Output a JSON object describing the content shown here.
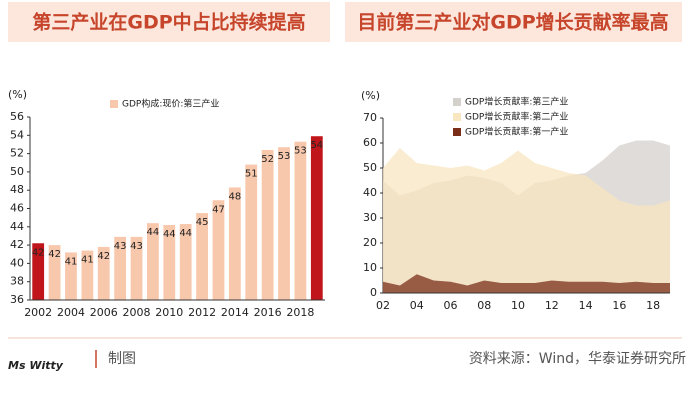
{
  "chart_data": [
    {
      "type": "bar",
      "title": "第三产业在GDP中占比持续提高",
      "y_unit": "(%)",
      "legend": "GDP构成:现价:第三产业",
      "legend_color": "#f8c8ad",
      "categories": [
        "2002",
        null,
        "2004",
        null,
        "2006",
        null,
        "2008",
        null,
        "2010",
        null,
        "2012",
        null,
        "2014",
        null,
        "2016",
        null,
        "2018",
        null
      ],
      "values": [
        42.2,
        42.0,
        41.2,
        41.4,
        41.8,
        42.9,
        42.9,
        44.4,
        44.2,
        44.3,
        45.5,
        46.9,
        48.3,
        50.8,
        52.4,
        52.7,
        53.3,
        53.9
      ],
      "value_labels": [
        "42",
        "42",
        "41",
        "41",
        "42",
        "43",
        "43",
        "44",
        "44",
        "44",
        "45",
        "47",
        "48",
        "51",
        "52",
        "53",
        "53",
        "54"
      ],
      "colors": [
        "#c0161b",
        "#f8c8ad",
        "#f8c8ad",
        "#f8c8ad",
        "#f8c8ad",
        "#f8c8ad",
        "#f8c8ad",
        "#f8c8ad",
        "#f8c8ad",
        "#f8c8ad",
        "#f8c8ad",
        "#f8c8ad",
        "#f8c8ad",
        "#f8c8ad",
        "#f8c8ad",
        "#f8c8ad",
        "#f8c8ad",
        "#c0161b"
      ],
      "ylim": [
        36,
        56
      ],
      "yticks": [
        36,
        38,
        40,
        42,
        44,
        46,
        48,
        50,
        52,
        54,
        56
      ]
    },
    {
      "type": "area",
      "title": "目前第三产业对GDP增长贡献率最高",
      "y_unit": "(%)",
      "categories": [
        "02",
        null,
        "04",
        null,
        "06",
        null,
        "08",
        null,
        "10",
        null,
        "12",
        null,
        "14",
        null,
        "16",
        null,
        "18",
        null
      ],
      "series": [
        {
          "name": "GDP增长贡献率:第三产业",
          "color": "#d4d0cc",
          "values": [
            45,
            39,
            41,
            44,
            45,
            47,
            46,
            44,
            39,
            44,
            45,
            47,
            48,
            53,
            59,
            61,
            61,
            59
          ]
        },
        {
          "name": "GDP增长贡献率:第二产业",
          "color": "#f8e6c0",
          "values": [
            50,
            58,
            52,
            51,
            50,
            51,
            49,
            52,
            57,
            52,
            50,
            48,
            47,
            42,
            37,
            35,
            35,
            37
          ]
        },
        {
          "name": "GDP增长贡献率:第一产业",
          "color": "#7a2e18",
          "values": [
            4.5,
            3,
            7.5,
            5,
            4.5,
            3,
            5,
            4,
            4,
            4,
            5,
            4.5,
            4.5,
            4.5,
            4,
            4.5,
            4,
            4
          ]
        }
      ],
      "ylim": [
        0,
        70
      ],
      "yticks": [
        0,
        10,
        20,
        30,
        40,
        50,
        60,
        70
      ]
    }
  ],
  "footer": {
    "logo": "Ms Witty",
    "note": "制图",
    "source": "资料来源：Wind，华泰证券研究所"
  }
}
